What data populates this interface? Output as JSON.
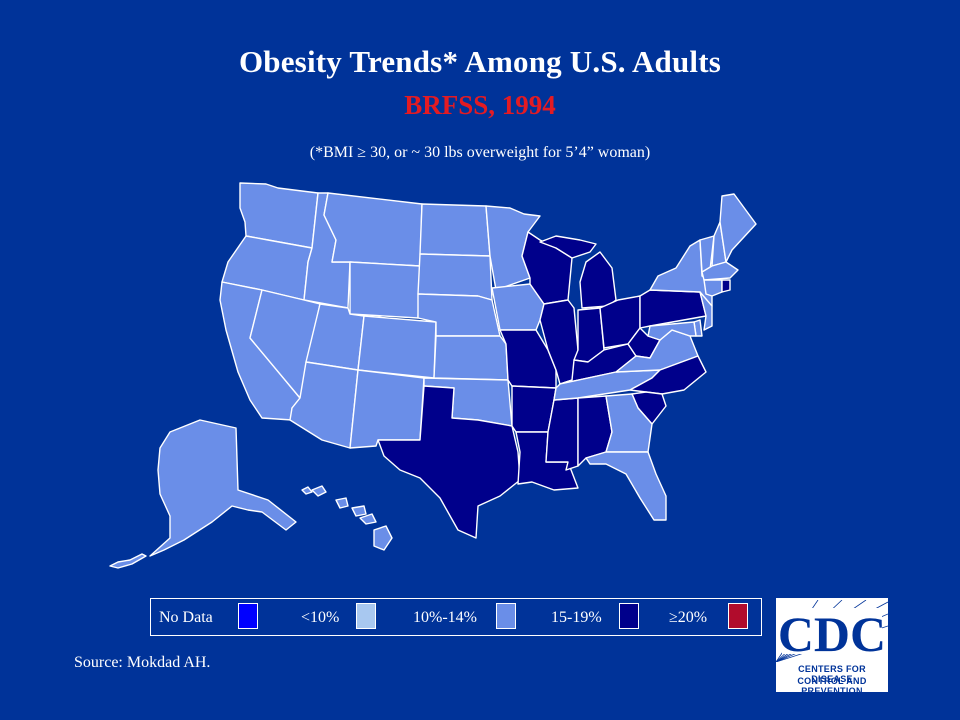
{
  "header": {
    "title": "Obesity Trends* Among U.S. Adults",
    "subtitle": "BRFSS, 1994",
    "footnote": "(*BMI ≥ 30, or ~ 30 lbs overweight for 5’4” woman)"
  },
  "map": {
    "categories": {
      "no_data": "#0000ff",
      "lt10": "#a8c8f0",
      "p10_14": "#6a8ee8",
      "p15_19": "#00008b",
      "ge20": "#b10c2c"
    },
    "states": {
      "WA": "p10_14",
      "OR": "p10_14",
      "CA": "p10_14",
      "ID": "p10_14",
      "NV": "p10_14",
      "MT": "p10_14",
      "WY": "p10_14",
      "UT": "p10_14",
      "AZ": "p10_14",
      "CO": "p10_14",
      "NM": "p10_14",
      "ND": "p10_14",
      "SD": "p10_14",
      "NE": "p10_14",
      "KS": "p10_14",
      "OK": "p10_14",
      "TX": "p15_19",
      "MN": "p10_14",
      "IA": "p10_14",
      "MO": "p15_19",
      "AR": "p15_19",
      "LA": "p15_19",
      "WI": "p15_19",
      "IL": "p15_19",
      "MS": "p15_19",
      "MI": "p15_19",
      "IN": "p15_19",
      "KY": "p15_19",
      "TN": "p10_14",
      "AL": "p15_19",
      "OH": "p15_19",
      "WV": "p15_19",
      "GA": "p10_14",
      "FL": "p10_14",
      "SC": "p15_19",
      "NC": "p15_19",
      "VA": "p10_14",
      "PA": "p15_19",
      "NY": "p10_14",
      "ME": "p10_14",
      "NH": "p10_14",
      "VT": "p10_14",
      "MA": "p10_14",
      "CT": "p10_14",
      "RI": "p15_19",
      "NJ": "p10_14",
      "DE": "p10_14",
      "MD": "p10_14",
      "AK": "p10_14",
      "HI": "p10_14"
    }
  },
  "legend": {
    "items": [
      {
        "label": "No Data",
        "key": "no_data"
      },
      {
        "label": "<10%",
        "key": "lt10"
      },
      {
        "label": "10%-14%",
        "key": "p10_14"
      },
      {
        "label": "15-19%",
        "key": "p15_19"
      },
      {
        "label": "≥20%",
        "key": "ge20"
      }
    ]
  },
  "source": "Source: Mokdad AH.",
  "logo": {
    "letters": "CDC",
    "line1": "CENTERS FOR DISEASE",
    "line2": "CONTROL AND PREVENTION"
  }
}
